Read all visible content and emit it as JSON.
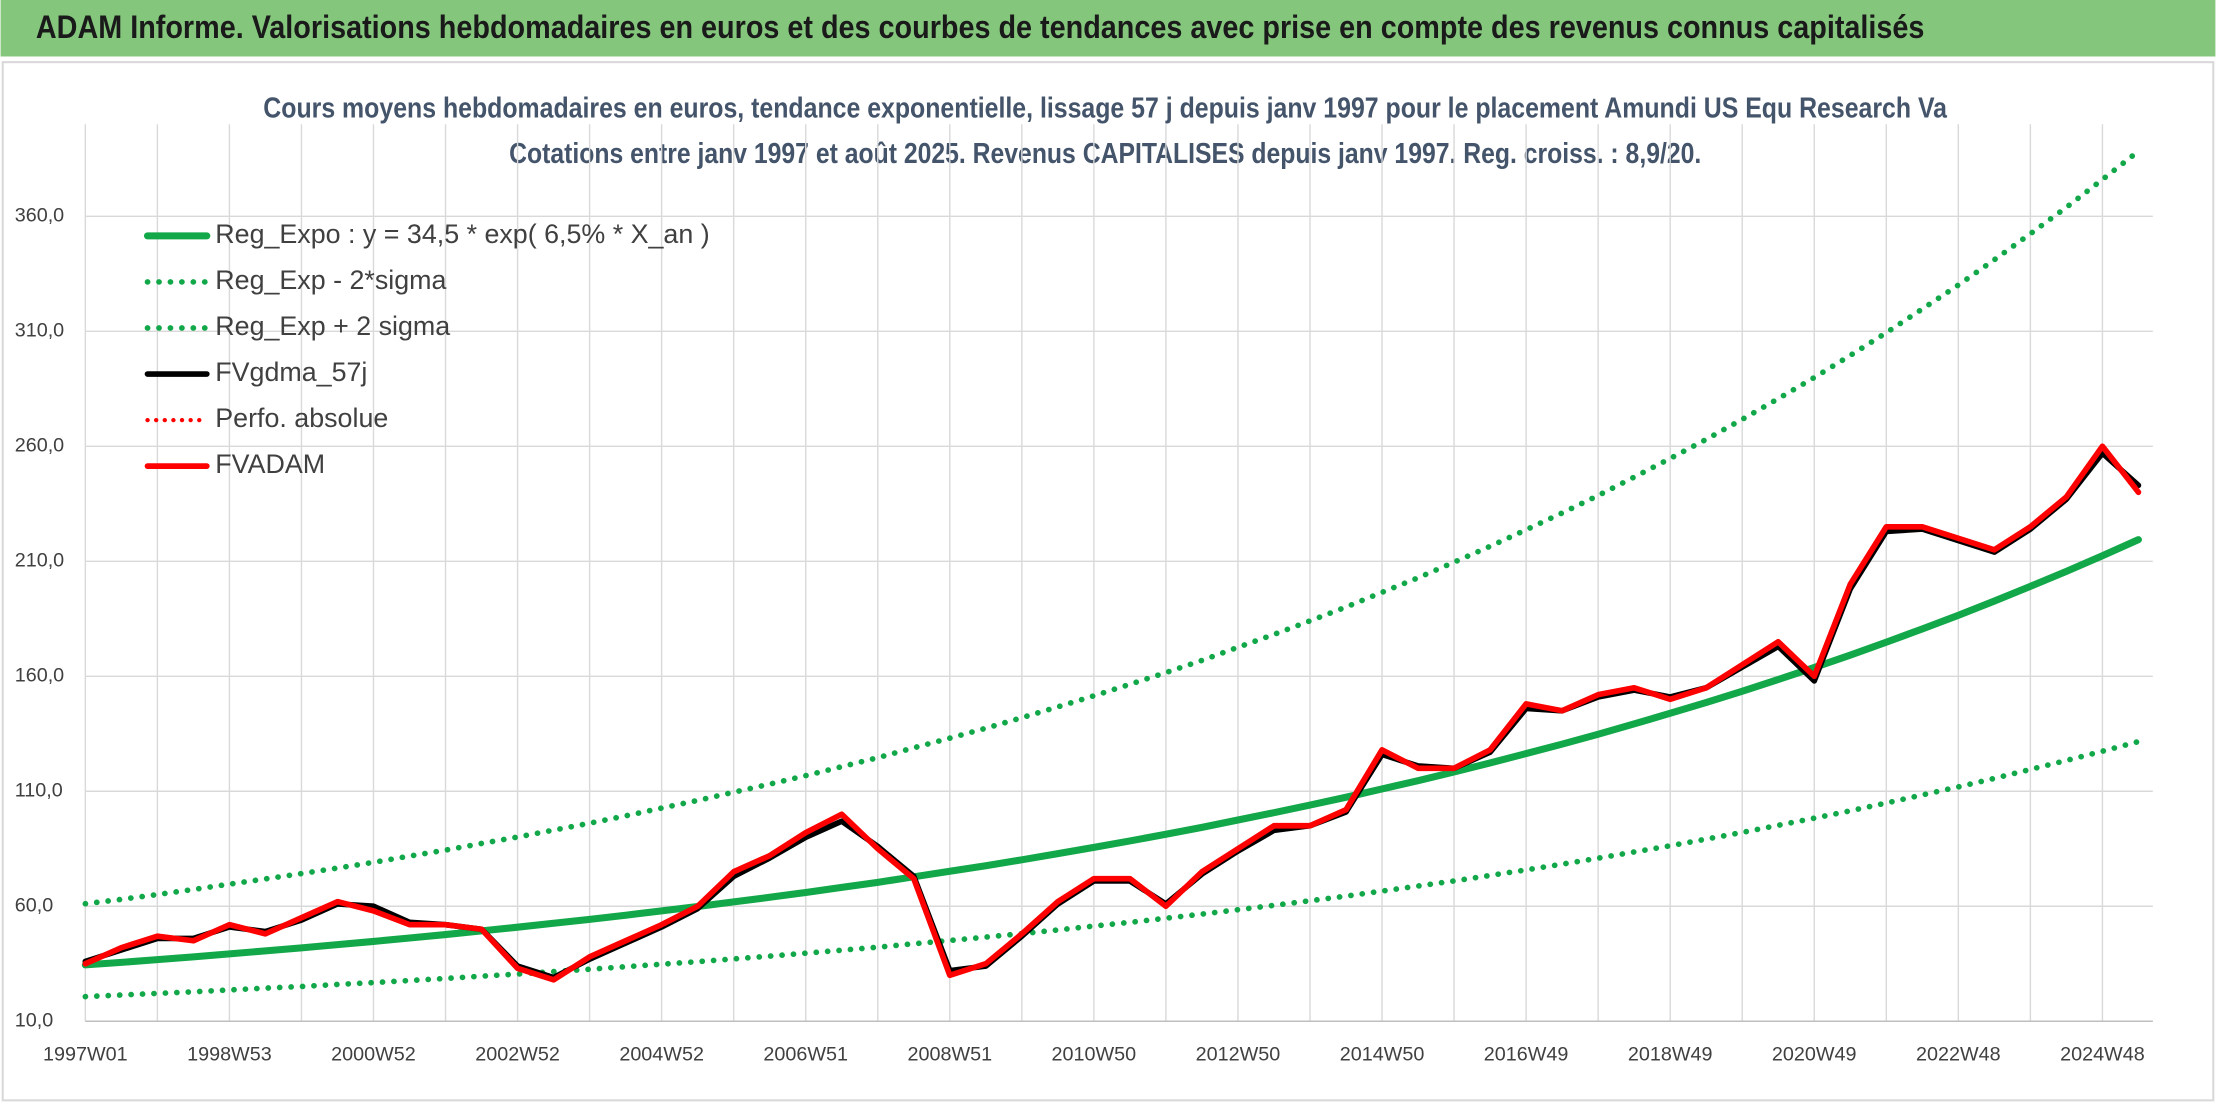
{
  "chart_data": {
    "type": "line",
    "title": "ADAM Informe. Valorisations hebdomadaires en euros et des courbes de tendances avec prise en compte des revenus connus capitalisés",
    "subtitle": [
      "Cours moyens hebdomadaires en euros, tendance exponentielle, lissage 57 j depuis janv 1997 pour le placement Amundi US Equ Research Va",
      "Cotations entre janv 1997 et août 2025. Revenus CAPITALISES depuis janv 1997. Reg. croiss. : 8,9/20."
    ],
    "categories": [
      "1997W01",
      null,
      null,
      null,
      "1998W53",
      null,
      null,
      null,
      "2000W52",
      null,
      null,
      null,
      "2002W52",
      null,
      null,
      null,
      "2004W52",
      null,
      null,
      null,
      "2006W51",
      null,
      null,
      null,
      "2008W51",
      null,
      null,
      null,
      "2010W50",
      null,
      null,
      null,
      "2012W50",
      null,
      null,
      null,
      "2014W50",
      null,
      null,
      null,
      "2016W49",
      null,
      null,
      null,
      "2018W49",
      null,
      null,
      null,
      "2020W49",
      null,
      null,
      null,
      "2022W48",
      null,
      null,
      null,
      "2024W48",
      null
    ],
    "ylim": [
      10,
      400
    ],
    "yticks": [
      {
        "value": 10,
        "label": "10,0"
      },
      {
        "value": 60,
        "label": "60,0"
      },
      {
        "value": 110,
        "label": "110,0"
      },
      {
        "value": 160,
        "label": "160,0"
      },
      {
        "value": 210,
        "label": "210,0"
      },
      {
        "value": 260,
        "label": "260,0"
      },
      {
        "value": 310,
        "label": "310,0"
      },
      {
        "value": 360,
        "label": "360,0"
      }
    ],
    "grid": true,
    "legend": "upper left",
    "series": [
      {
        "name": "Reg_Expo : y = 34,5 * exp( 6,5% *  X_an )",
        "color": "#12a84a",
        "style": "solid",
        "width": 5,
        "values": [
          34.5,
          35.6,
          36.8,
          38.0,
          39.3,
          40.6,
          41.9,
          43.3,
          44.7,
          46.2,
          47.7,
          49.3,
          50.9,
          52.6,
          54.3,
          56.1,
          58.0,
          59.9,
          61.9,
          63.9,
          66.0,
          68.2,
          70.4,
          72.8,
          75.2,
          77.6,
          80.2,
          82.9,
          85.6,
          88.4,
          91.3,
          94.3,
          97.5,
          100.7,
          104.0,
          107.4,
          111.0,
          114.6,
          118.4,
          122.3,
          126.4,
          130.5,
          134.8,
          139.3,
          143.9,
          148.6,
          153.5,
          158.6,
          163.8,
          169.2,
          174.8,
          180.6,
          186.5,
          192.7,
          199.1,
          205.6,
          212.4,
          219.4
        ]
      },
      {
        "name": "Reg_Exp - 2*sigma",
        "color": "#12a84a",
        "style": "dotted",
        "width": 4,
        "values": [
          20.7,
          21.4,
          22.1,
          22.8,
          23.6,
          24.4,
          25.1,
          26.0,
          26.8,
          27.7,
          28.6,
          29.6,
          30.5,
          31.6,
          32.6,
          33.7,
          34.8,
          35.9,
          37.1,
          38.3,
          39.6,
          40.9,
          42.2,
          43.7,
          45.1,
          46.6,
          48.1,
          49.7,
          51.4,
          53.0,
          54.8,
          56.6,
          58.5,
          60.4,
          62.4,
          64.4,
          66.6,
          68.8,
          71.0,
          73.4,
          75.8,
          78.3,
          80.9,
          83.6,
          86.3,
          89.2,
          92.1,
          95.2,
          98.3,
          101.5,
          104.9,
          108.4,
          111.9,
          115.6,
          119.5,
          123.4,
          127.4,
          131.6
        ]
      },
      {
        "name": "Reg_Exp + 2 sigma",
        "color": "#12a84a",
        "style": "dotted",
        "width": 4,
        "values": [
          61.1,
          63.0,
          65.1,
          67.3,
          69.6,
          71.9,
          74.2,
          76.6,
          79.1,
          81.8,
          84.4,
          87.3,
          90.1,
          93.1,
          96.1,
          99.3,
          102.7,
          106.0,
          109.6,
          113.1,
          116.8,
          120.7,
          124.6,
          128.9,
          133.1,
          137.4,
          142.0,
          146.7,
          151.5,
          156.5,
          161.6,
          166.9,
          172.6,
          178.2,
          184.1,
          190.1,
          196.5,
          202.8,
          209.6,
          216.5,
          223.7,
          231.0,
          238.6,
          246.6,
          254.7,
          263.0,
          271.7,
          280.7,
          289.9,
          299.5,
          309.4,
          319.7,
          330.1,
          341.1,
          352.4,
          363.9,
          376.0,
          388.3
        ]
      },
      {
        "name": "FVgdma_57j",
        "color": "#000000",
        "style": "solid",
        "width": 4,
        "values": [
          36,
          41,
          46,
          46,
          51,
          49,
          54,
          61,
          60,
          53,
          52,
          50,
          34,
          29,
          37,
          44,
          51,
          59,
          73,
          81,
          90,
          97,
          86,
          73,
          32,
          34,
          47,
          61,
          71,
          71,
          61,
          74,
          84,
          93,
          95,
          101,
          126,
          121,
          120,
          127,
          146,
          145,
          151,
          154,
          151,
          155,
          164,
          173,
          158,
          198,
          223,
          224,
          219,
          214,
          224,
          237,
          257,
          243
        ]
      },
      {
        "name": "Perfo. absolue",
        "color": "#ff0000",
        "style": "dotted",
        "width": 3,
        "values": [
          35,
          42,
          47,
          45,
          52,
          48,
          55,
          62,
          58,
          52,
          52,
          50,
          33,
          28,
          38,
          45,
          52,
          60,
          75,
          82,
          92,
          100,
          85,
          72,
          30,
          35,
          48,
          62,
          72,
          72,
          60,
          75,
          85,
          95,
          95,
          102,
          128,
          120,
          120,
          128,
          148,
          145,
          152,
          155,
          150,
          155,
          165,
          175,
          160,
          200,
          225,
          225,
          220,
          215,
          225,
          238,
          260,
          240
        ]
      },
      {
        "name": "FVADAM",
        "color": "#ff0000",
        "style": "solid",
        "width": 4,
        "values": [
          35,
          42,
          47,
          45,
          52,
          48,
          55,
          62,
          58,
          52,
          52,
          50,
          33,
          28,
          38,
          45,
          52,
          60,
          75,
          82,
          92,
          100,
          85,
          72,
          30,
          35,
          48,
          62,
          72,
          72,
          60,
          75,
          85,
          95,
          95,
          102,
          128,
          120,
          120,
          128,
          148,
          145,
          152,
          155,
          150,
          155,
          165,
          175,
          160,
          200,
          225,
          225,
          220,
          215,
          225,
          238,
          260,
          240
        ]
      }
    ]
  }
}
